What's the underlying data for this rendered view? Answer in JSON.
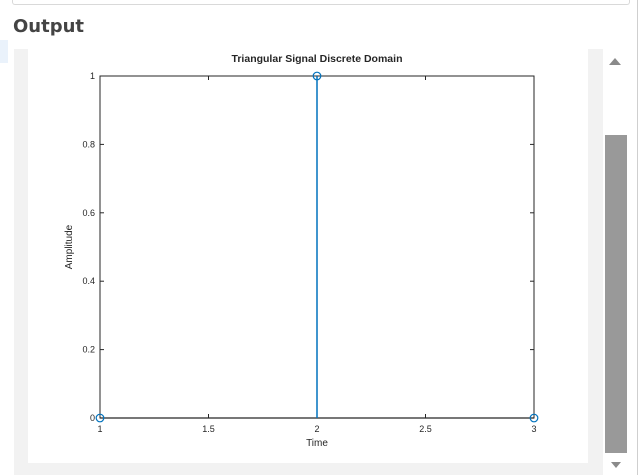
{
  "section": {
    "title": "Output"
  },
  "chart_data": {
    "type": "stem",
    "title": "Triangular Signal Discrete Domain",
    "xlabel": "Time",
    "ylabel": "Amplitude",
    "x": [
      1,
      2,
      3
    ],
    "y": [
      0,
      1,
      0
    ],
    "xlim": [
      1,
      3
    ],
    "ylim": [
      0,
      1
    ],
    "xticks": [
      1,
      1.5,
      2,
      2.5,
      3
    ],
    "xtick_labels": [
      "1",
      "1.5",
      "2",
      "2.5",
      "3"
    ],
    "yticks": [
      0,
      0.2,
      0.4,
      0.6,
      0.8,
      1
    ],
    "ytick_labels": [
      "0",
      "0.2",
      "0.4",
      "0.6",
      "0.8",
      "1"
    ],
    "grid": false,
    "series_color": "#0072bd"
  }
}
